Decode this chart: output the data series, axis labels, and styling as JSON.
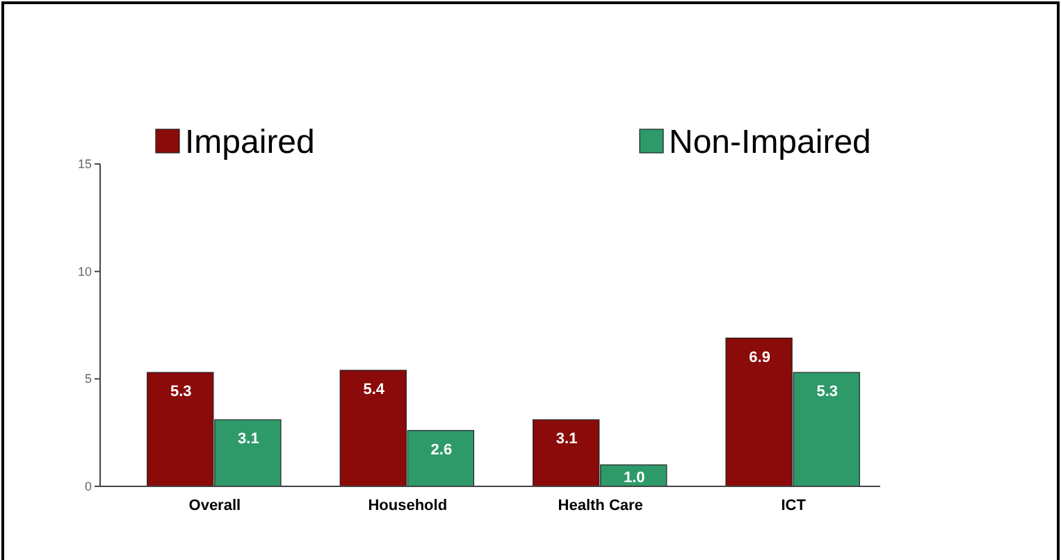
{
  "chart_data": {
    "type": "bar",
    "categories": [
      "Overall",
      "Household",
      "Health Care",
      "ICT"
    ],
    "series": [
      {
        "name": "Impaired",
        "color": "#8b0a0a",
        "values": [
          5.3,
          5.4,
          3.1,
          6.9
        ],
        "value_labels": [
          "5.3",
          "5.4",
          "3.1",
          "6.9"
        ]
      },
      {
        "name": "Non-Impaired",
        "color": "#2e9a6a",
        "values": [
          3.1,
          2.6,
          1.0,
          5.3
        ],
        "value_labels": [
          "3.1",
          "2.6",
          "1.0",
          "5.3"
        ]
      }
    ],
    "ylim": [
      0,
      15
    ],
    "yticks": [
      0,
      5,
      10,
      15
    ],
    "grid": false,
    "legend": "top"
  }
}
